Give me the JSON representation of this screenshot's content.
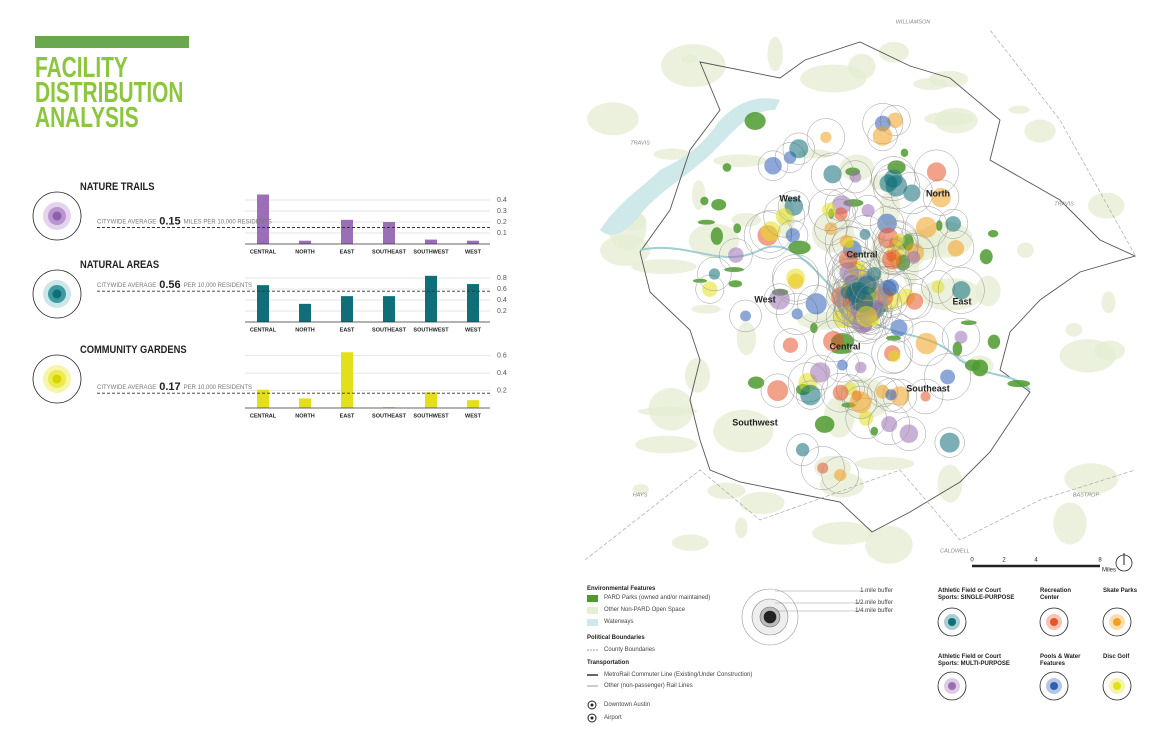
{
  "header": {
    "title": "FACILITY DISTRIBUTION ANALYSIS"
  },
  "chart_data": [
    {
      "type": "bar",
      "title": "NATURE TRAILS",
      "color": "#9b6fb5",
      "categories": [
        "CENTRAL",
        "NORTH",
        "EAST",
        "SOUTHEAST",
        "SOUTHWEST",
        "WEST"
      ],
      "values": [
        0.45,
        0.03,
        0.22,
        0.2,
        0.04,
        0.03
      ],
      "ylim": [
        0,
        0.5
      ],
      "yticks": [
        0.1,
        0.2,
        0.3,
        0.4
      ],
      "average": {
        "label": "CITYWIDE AVERAGE",
        "value": 0.15,
        "unit": "MILES PER 10,000 RESIDENTS"
      }
    },
    {
      "type": "bar",
      "title": "NATURAL AREAS",
      "color": "#0f6e78",
      "categories": [
        "CENTRAL",
        "NORTH",
        "EAST",
        "SOUTHEAST",
        "SOUTHWEST",
        "WEST"
      ],
      "values": [
        0.67,
        0.33,
        0.47,
        0.47,
        0.84,
        0.69
      ],
      "ylim": [
        0,
        0.9
      ],
      "yticks": [
        0.2,
        0.4,
        0.6,
        0.8
      ],
      "average": {
        "label": "CITYWIDE AVERAGE",
        "value": 0.56,
        "unit": "PER 10,000 RESIDENTS"
      }
    },
    {
      "type": "bar",
      "title": "COMMUNITY GARDENS",
      "color": "#e3e01b",
      "categories": [
        "CENTRAL",
        "NORTH",
        "EAST",
        "SOUTHEAST",
        "SOUTHWEST",
        "WEST"
      ],
      "values": [
        0.21,
        0.11,
        0.64,
        0.01,
        0.18,
        0.09
      ],
      "ylim": [
        0,
        0.7
      ],
      "yticks": [
        0.2,
        0.4,
        0.6
      ],
      "average": {
        "label": "CITYWIDE AVERAGE",
        "value": 0.17,
        "unit": "PER 10,000 RESIDENTS"
      }
    }
  ],
  "map": {
    "county_labels": [
      "WILLIAMSON",
      "TRAVIS",
      "TRAVIS",
      "HAYS",
      "BASTROP",
      "CALDWELL"
    ],
    "district_labels": [
      "West",
      "North",
      "Central",
      "West",
      "East",
      "Central",
      "Southeast",
      "Southwest"
    ],
    "scale": {
      "ticks": [
        "0",
        "2",
        "4",
        "8"
      ],
      "unit": "Miles"
    }
  },
  "legend": {
    "environmental": {
      "title": "Environmental Features",
      "items": [
        "PARD Parks (owned and/or maintained)",
        "Other Non-PARD Open Space",
        "Waterways"
      ]
    },
    "political": {
      "title": "Political Boundaries",
      "items": [
        "County Boundaries"
      ]
    },
    "transportation": {
      "title": "Transportation",
      "items": [
        "MetroRail Commuter Line (Existing/Under Construction)",
        "Other (non-passenger) Rail Lines"
      ]
    },
    "points": [
      "Downtown Austin",
      "Airport"
    ],
    "buffers": [
      "1 mile buffer",
      "1/2 mile buffer",
      "1/4 mile buffer"
    ],
    "facilities": [
      "Athletic Field or Court Sports: SINGLE-PURPOSE",
      "Recreation Center",
      "Skate Parks",
      "Athletic Field or Court Sports: MULTI-PURPOSE",
      "Pools & Water Features",
      "Disc Golf"
    ]
  }
}
